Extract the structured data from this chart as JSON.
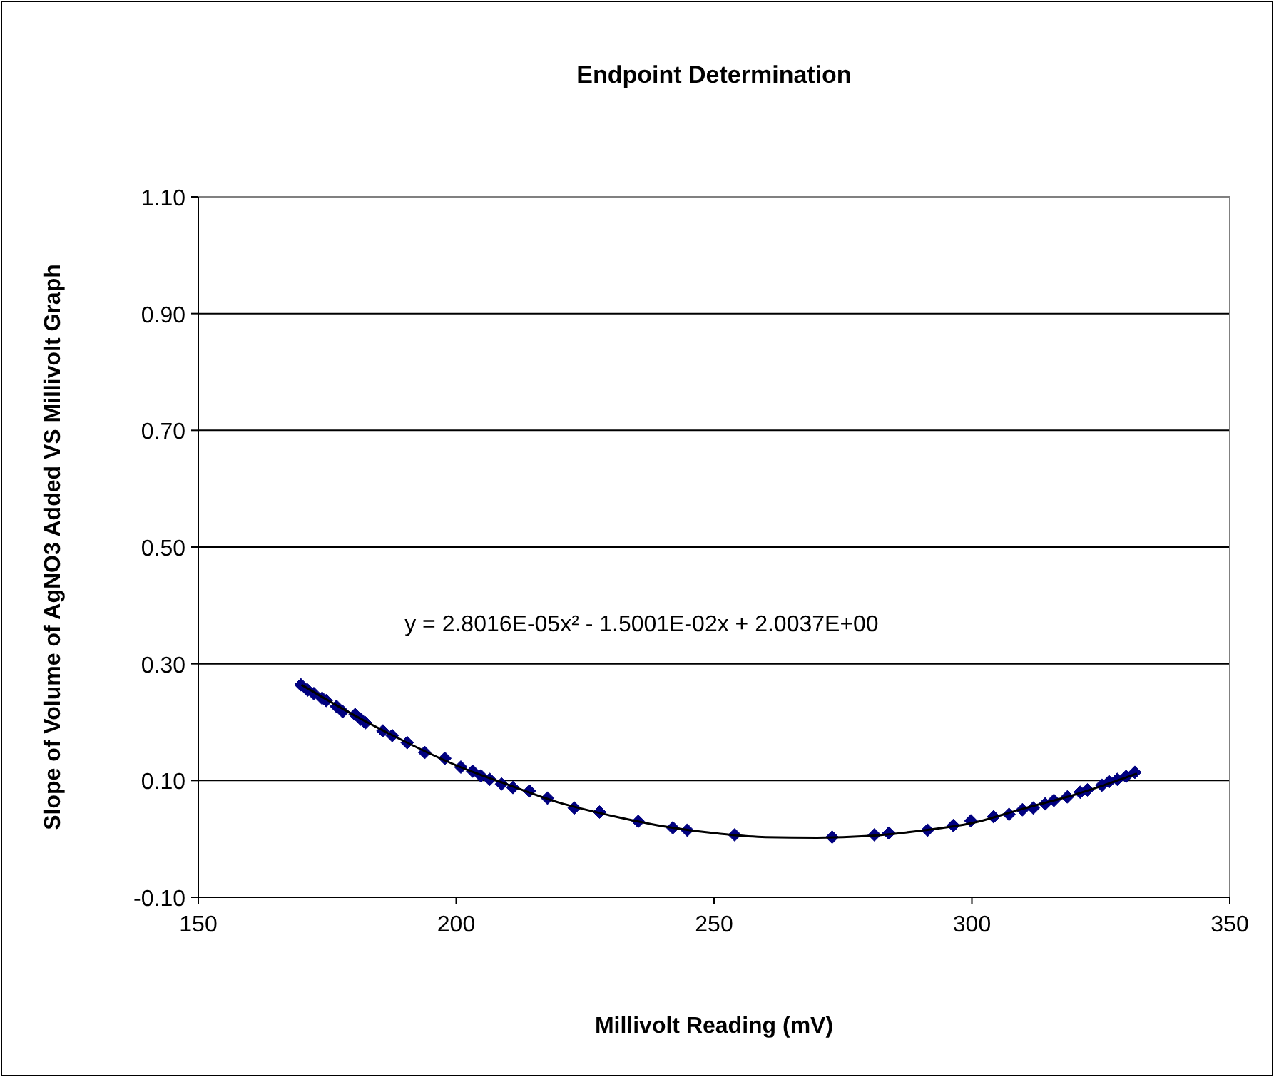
{
  "chart_data": {
    "type": "scatter",
    "title": "Endpoint Determination",
    "xlabel": "Millivolt Reading (mV)",
    "ylabel": "Slope of Volume of AgNO3  Added VS Millivolt Graph",
    "annotations": [
      "y = 2.8016E-05x² - 1.5001E-02x  + 2.0037E+00"
    ],
    "series": [
      {
        "color": "#000080",
        "marker": "diamond",
        "x": [
          169.9,
          171.2,
          172.4,
          174.0,
          174.8,
          176.8,
          178.0,
          180.4,
          181.5,
          182.4,
          185.8,
          187.6,
          190.5,
          193.9,
          197.8,
          200.9,
          203.2,
          204.8,
          206.5,
          208.8,
          211.0,
          214.2,
          217.7,
          222.9,
          227.8,
          235.3,
          242.0,
          244.8,
          254.0,
          272.9,
          281.1,
          283.9,
          291.4,
          296.4,
          299.8,
          304.2,
          307.2,
          309.8,
          311.9,
          314.2,
          315.9,
          318.5,
          321.0,
          322.4,
          325.2,
          326.6,
          328.2,
          329.9,
          331.6
        ],
        "values": [
          0.264,
          0.255,
          0.249,
          0.241,
          0.237,
          0.227,
          0.218,
          0.213,
          0.205,
          0.199,
          0.185,
          0.177,
          0.165,
          0.148,
          0.138,
          0.123,
          0.116,
          0.108,
          0.102,
          0.094,
          0.088,
          0.082,
          0.07,
          0.053,
          0.046,
          0.03,
          0.019,
          0.015,
          0.007,
          0.003,
          0.007,
          0.01,
          0.015,
          0.023,
          0.031,
          0.038,
          0.042,
          0.05,
          0.053,
          0.06,
          0.066,
          0.072,
          0.08,
          0.084,
          0.092,
          0.098,
          0.102,
          0.107,
          0.114
        ]
      },
      {
        "type": "line",
        "color": "#000000",
        "marker": "none",
        "x": [
          170,
          180,
          190,
          200,
          210,
          220,
          230,
          240,
          250,
          260,
          270,
          280,
          290,
          300,
          310,
          320,
          332
        ],
        "values": [
          0.264,
          0.213,
          0.167,
          0.126,
          0.093,
          0.062,
          0.04,
          0.022,
          0.01,
          0.003,
          0.002,
          0.005,
          0.014,
          0.027,
          0.052,
          0.076,
          0.112
        ]
      }
    ],
    "xlim": [
      150,
      350
    ],
    "xticks": [
      150,
      200,
      250,
      300,
      350
    ],
    "ylim": [
      -0.1,
      1.1
    ],
    "yticks": [
      {
        "value": -0.1,
        "label": "-0.10"
      },
      {
        "value": 0.1,
        "label": "0.10"
      },
      {
        "value": 0.3,
        "label": "0.30"
      },
      {
        "value": 0.5,
        "label": "0.50"
      },
      {
        "value": 0.7,
        "label": "0.70"
      },
      {
        "value": 0.9,
        "label": "0.90"
      },
      {
        "value": 1.1,
        "label": "1.10"
      }
    ],
    "grid": "y"
  }
}
